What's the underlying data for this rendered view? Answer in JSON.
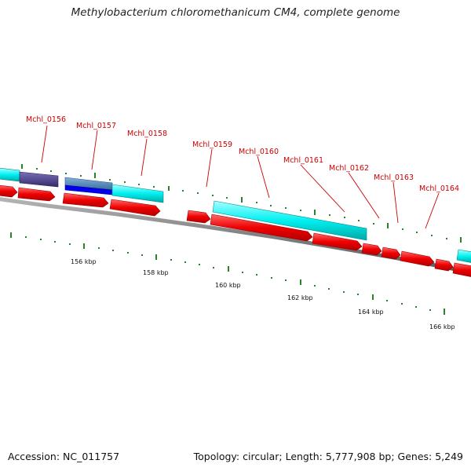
{
  "title": "Methylobacterium chloromethanicum CM4, complete genome",
  "footer": {
    "accession": "Accession: NC_011757",
    "stats": "Topology: circular; Length: 5,777,908 bp; Genes: 5,249"
  },
  "colors": {
    "cds": "#ff0000",
    "cds_dark": "#990000",
    "orf_cyan": "#00ffff",
    "orf_cyan_dark": "#008b8b",
    "purple": "#4b3f8a",
    "blue": "#0000ee",
    "steel_blue": "#4a7faf",
    "tick_green": "#117711",
    "backbone": "#888888",
    "label_red": "#cc0000"
  },
  "gene_labels": [
    "Mchl_0156",
    "Mchl_0157",
    "Mchl_0158",
    "Mchl_0159",
    "Mchl_0160",
    "Mchl_0161",
    "Mchl_0162",
    "Mchl_0163",
    "Mchl_0164"
  ],
  "kbp_labels": [
    "156 kbp",
    "158 kbp",
    "160 kbp",
    "162 kbp",
    "164 kbp",
    "166 kbp"
  ]
}
